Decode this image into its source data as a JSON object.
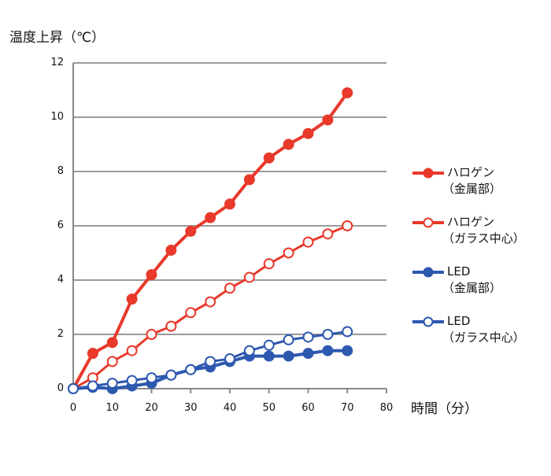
{
  "chart_data": {
    "type": "line",
    "ylabel": "温度上昇（℃）",
    "xlabel": "時間（分）",
    "xlim": [
      0,
      80
    ],
    "ylim": [
      0,
      12
    ],
    "xticks": [
      0,
      10,
      20,
      30,
      40,
      50,
      60,
      70,
      80
    ],
    "yticks": [
      0,
      2,
      4,
      6,
      8,
      10,
      12
    ],
    "grid": "horizontal",
    "legend_position": "right",
    "x": [
      0,
      5,
      10,
      15,
      20,
      25,
      30,
      35,
      40,
      45,
      50,
      55,
      60,
      65,
      70
    ],
    "series": [
      {
        "name": "ハロゲン",
        "name2": "（金属部）",
        "color": "#e8392b",
        "filled": true,
        "values": [
          0,
          1.3,
          1.7,
          3.3,
          4.2,
          5.1,
          5.8,
          6.3,
          6.8,
          7.7,
          8.5,
          9.0,
          9.4,
          9.9,
          10.9
        ]
      },
      {
        "name": "ハロゲン",
        "name2": "（ガラス中心）",
        "color": "#e8392b",
        "filled": false,
        "values": [
          0,
          0.4,
          1.0,
          1.4,
          2.0,
          2.3,
          2.8,
          3.2,
          3.7,
          4.1,
          4.6,
          5.0,
          5.4,
          5.7,
          6.0
        ]
      },
      {
        "name": "LED",
        "name2": "（金属部）",
        "color": "#2d58b0",
        "filled": true,
        "values": [
          0,
          0.05,
          0,
          0.1,
          0.2,
          0.5,
          0.7,
          0.8,
          1.0,
          1.2,
          1.2,
          1.2,
          1.3,
          1.4,
          1.4
        ]
      },
      {
        "name": "LED",
        "name2": "（ガラス中心）",
        "color": "#2d58b0",
        "filled": false,
        "values": [
          0,
          0.1,
          0.2,
          0.3,
          0.4,
          0.5,
          0.7,
          1.0,
          1.1,
          1.4,
          1.6,
          1.8,
          1.9,
          2.0,
          2.1
        ]
      }
    ]
  }
}
